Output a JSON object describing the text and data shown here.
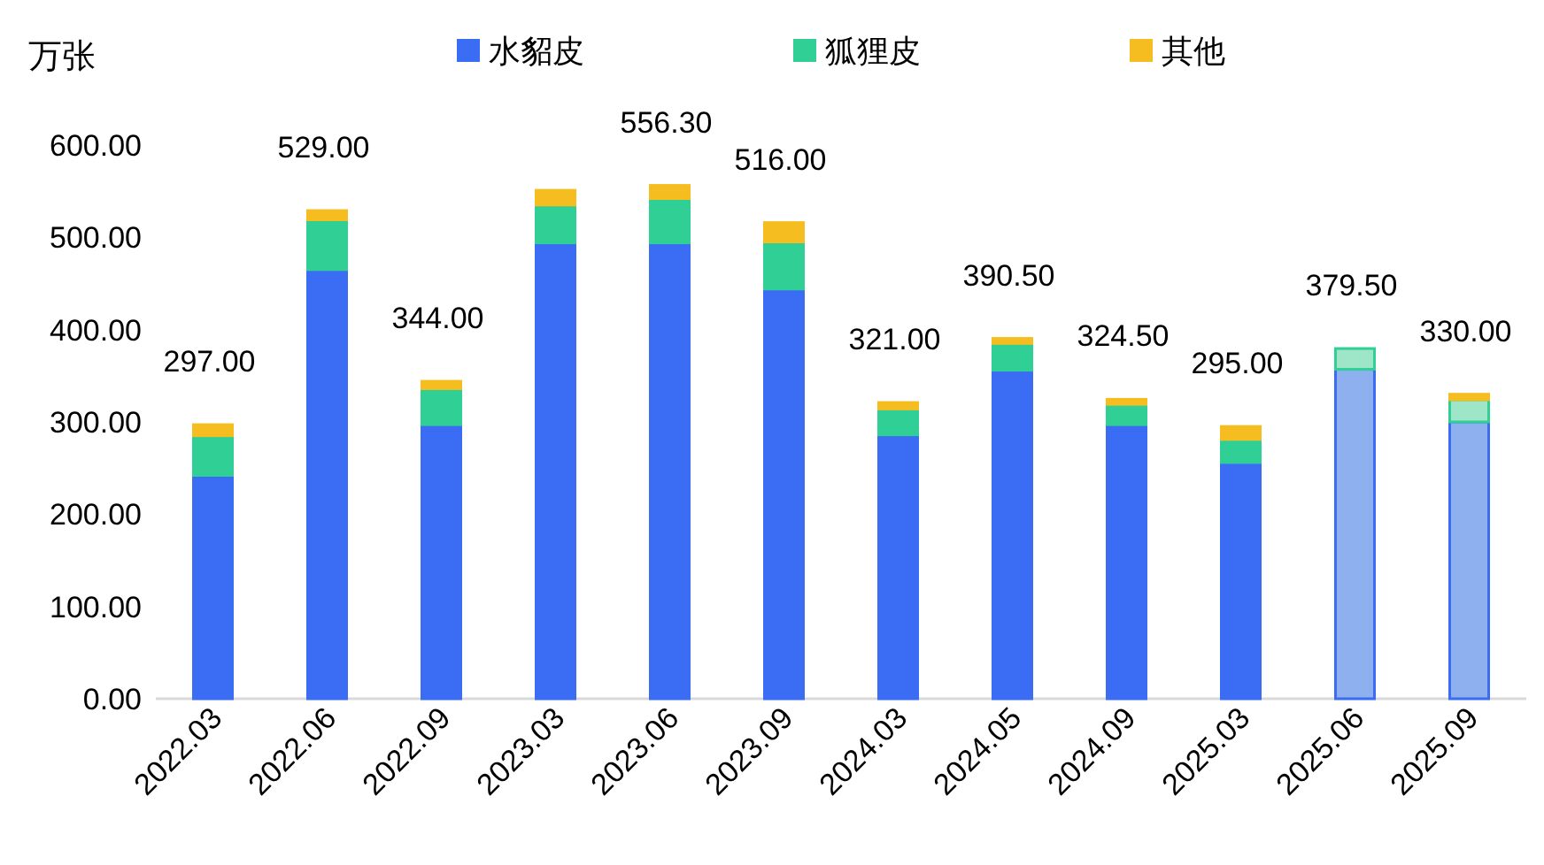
{
  "chart_data": {
    "type": "bar",
    "stacked": true,
    "ylabel": "万张",
    "categories": [
      "2022.03",
      "2022.06",
      "2022.09",
      "2023.03",
      "2023.06",
      "2023.09",
      "2024.03",
      "2024.05",
      "2024.09",
      "2025.03",
      "2025.06",
      "2025.09"
    ],
    "series": [
      {
        "name": "水貂皮",
        "color": "#3a6cf4",
        "colors": [
          "#3a6cf4",
          "#3a6cf4",
          "#3a6cf4",
          "#3a6cf4",
          "#3a6cf4",
          "#3a6cf4",
          "#3a6cf4",
          "#3a6cf4",
          "#3a6cf4",
          "#3a6cf4",
          "#8fb0ee",
          "#8fb0ee"
        ],
        "values": [
          242,
          465,
          297,
          494,
          494,
          444,
          286,
          356,
          297,
          256,
          357,
          300
        ]
      },
      {
        "name": "狐狸皮",
        "color": "#2fcf95",
        "colors": [
          "#2fcf95",
          "#2fcf95",
          "#2fcf95",
          "#2fcf95",
          "#2fcf95",
          "#2fcf95",
          "#2fcf95",
          "#2fcf95",
          "#2fcf95",
          "#2fcf95",
          "#9fe6c8",
          "#9fe6c8"
        ],
        "values": [
          43,
          54,
          39,
          41,
          48,
          51,
          28,
          29,
          22,
          25,
          22.5,
          24
        ]
      },
      {
        "name": "其他",
        "color": "#f5bd1f",
        "values": [
          12,
          10,
          8,
          16,
          14.3,
          21,
          7,
          5.5,
          5.5,
          14,
          null,
          6
        ]
      }
    ],
    "totals": [
      "297.00",
      "529.00",
      "344.00",
      null,
      "556.30",
      "516.00",
      "321.00",
      "390.50",
      "324.50",
      "295.00",
      "379.50",
      "330.00"
    ],
    "ylim": [
      0,
      600
    ],
    "yticks": [
      {
        "value": 0,
        "label": "0.00"
      },
      {
        "value": 100,
        "label": "100.00"
      },
      {
        "value": 200,
        "label": "200.00"
      },
      {
        "value": 300,
        "label": "300.00"
      },
      {
        "value": 400,
        "label": "400.00"
      },
      {
        "value": 500,
        "label": "500.00"
      },
      {
        "value": 600,
        "label": "600.00"
      }
    ],
    "legend": "top",
    "grid": false
  }
}
